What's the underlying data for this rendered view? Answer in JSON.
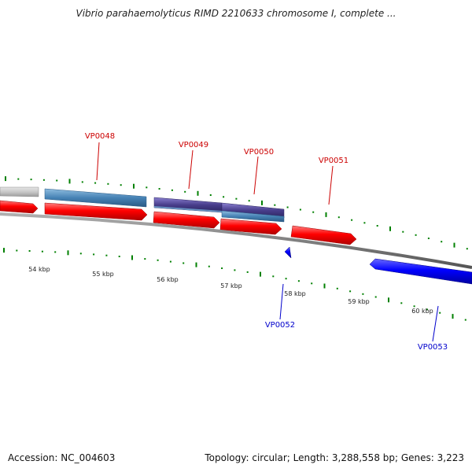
{
  "title": "Vibrio parahaemolyticus RIMD 2210633 chromosome I, complete ...",
  "footer": {
    "accession": "Accession: NC_004603",
    "summary": "Topology: circular; Length: 3,288,558 bp; Genes: 3,223"
  },
  "colors": {
    "plus_cds": "#ff0000",
    "minus_cds": "#0000ff",
    "rna_blue": "#4682b4",
    "rna_purple": "#483d8b",
    "grey_feature": "#c8c8c8",
    "backbone": "#808080",
    "ticks": "#008000",
    "plus_label": "#cc0000",
    "minus_label": "#0000cc"
  },
  "scale_labels": [
    "54 kbp",
    "55 kbp",
    "56 kbp",
    "57 kbp",
    "58 kbp",
    "59 kbp",
    "60 kbp"
  ],
  "plus_labels": [
    "VP0048",
    "VP0049",
    "VP0050",
    "VP0051"
  ],
  "minus_labels": [
    "VP0052",
    "VP0053"
  ]
}
